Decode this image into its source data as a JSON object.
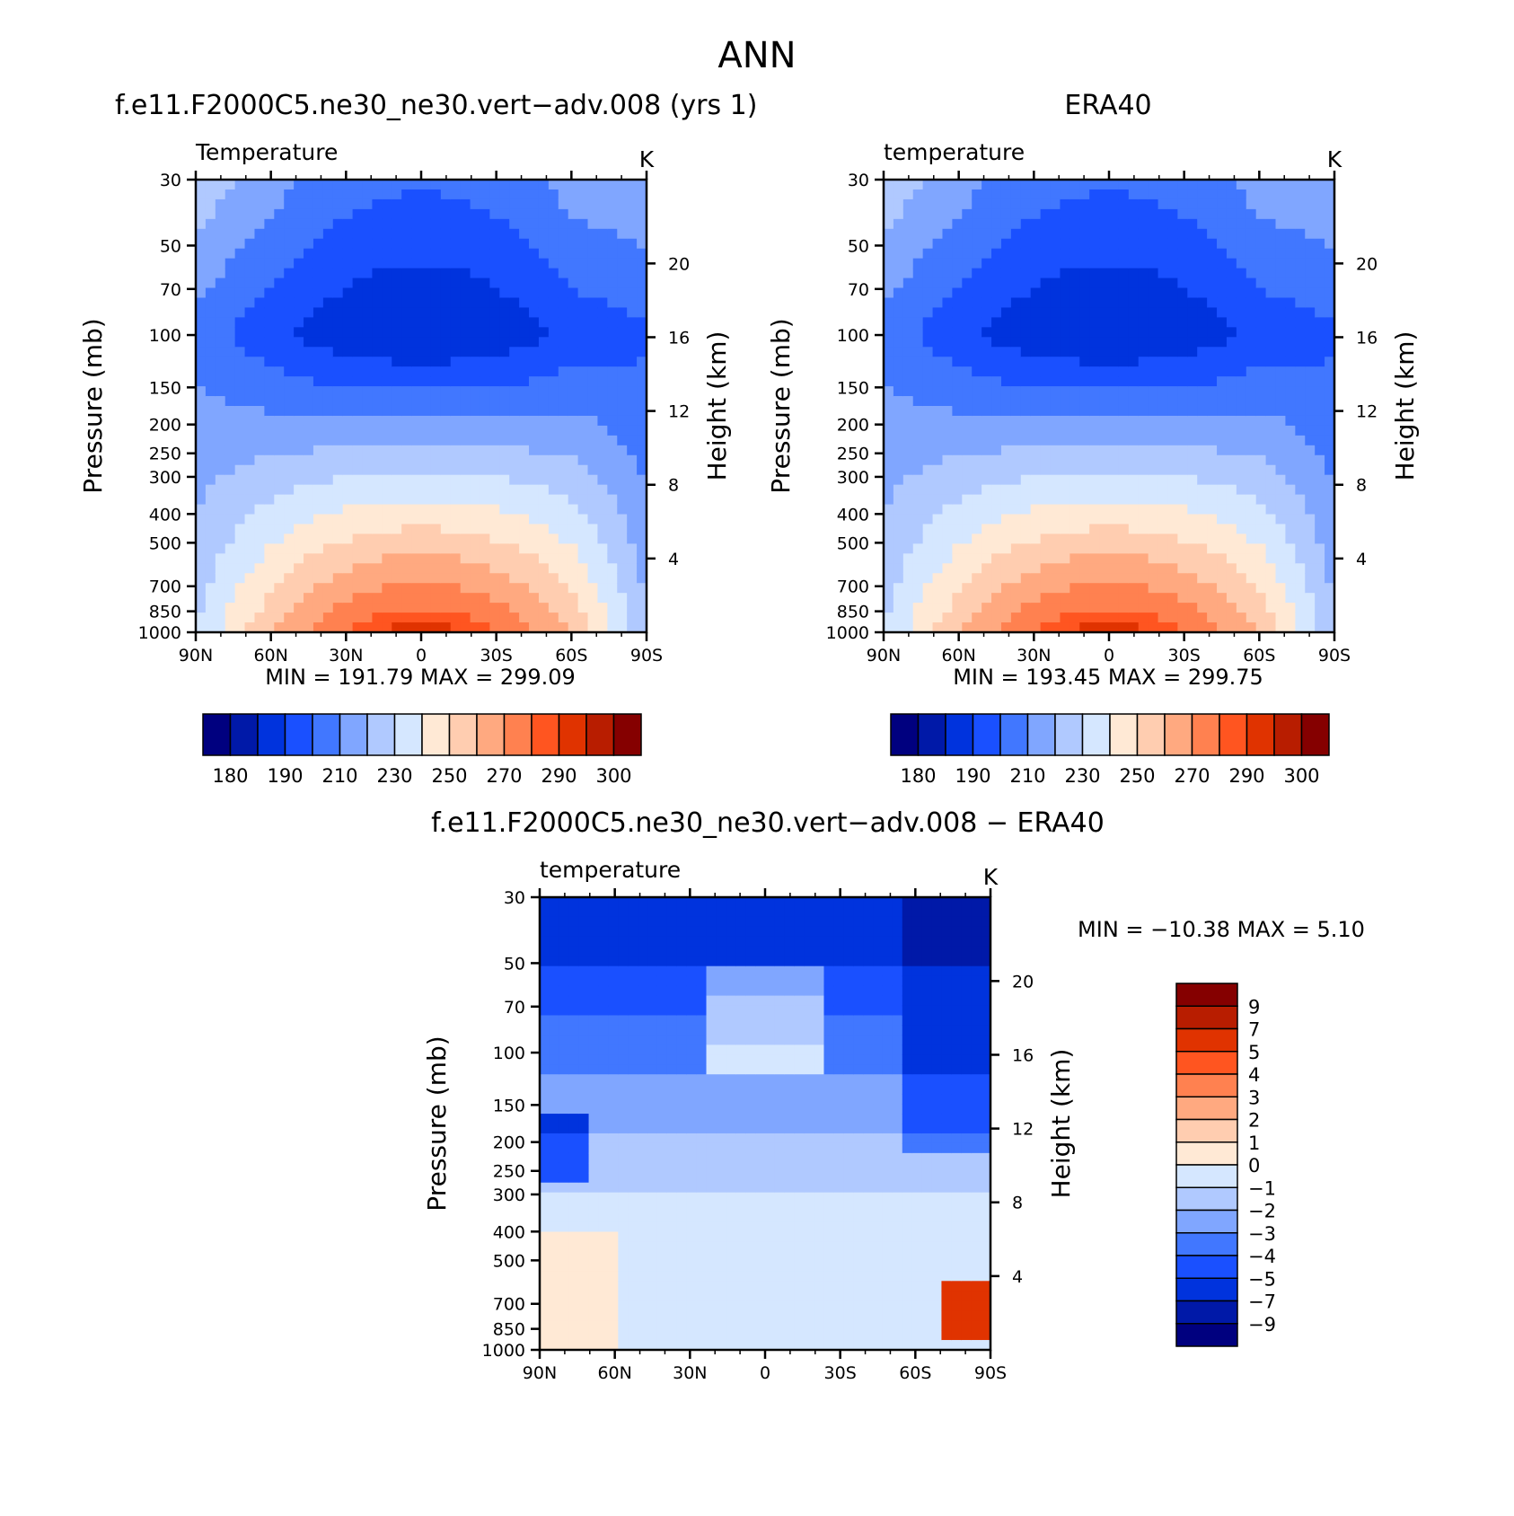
{
  "page_title": "ANN",
  "chart_data": [
    {
      "type": "heatmap",
      "title": "f.e11.F2000C5.ne30_ne30.vert-adv.008 (yrs 1)",
      "variable": "Temperature",
      "units": "K",
      "ylabel": "Pressure (mb)",
      "ylabel_right": "Height (km)",
      "x_ticks": [
        "90N",
        "60N",
        "30N",
        "0",
        "30S",
        "60S",
        "90S"
      ],
      "y_ticks": [
        "30",
        "50",
        "70",
        "100",
        "150",
        "200",
        "250",
        "300",
        "400",
        "500",
        "700",
        "850",
        "1000"
      ],
      "y2_ticks": [
        "4",
        "8",
        "12",
        "16",
        "20"
      ],
      "stats": {
        "min_label": "MIN",
        "min": "191.79",
        "max_label": "MAX",
        "max": "299.09"
      },
      "colorbar_labels": [
        "180",
        "190",
        "210",
        "230",
        "250",
        "270",
        "290",
        "300"
      ],
      "colorbar_orientation": "horizontal",
      "field": {
        "min": 191.79,
        "max": 299.09,
        "tropopause_min_lat": 0,
        "cold_pole": "south"
      }
    },
    {
      "type": "heatmap",
      "title": "ERA40",
      "variable": "temperature",
      "units": "K",
      "ylabel": "Pressure (mb)",
      "ylabel_right": "Height (km)",
      "x_ticks": [
        "90N",
        "60N",
        "30N",
        "0",
        "30S",
        "60S",
        "90S"
      ],
      "y_ticks": [
        "30",
        "50",
        "70",
        "100",
        "150",
        "200",
        "250",
        "300",
        "400",
        "500",
        "700",
        "850",
        "1000"
      ],
      "y2_ticks": [
        "4",
        "8",
        "12",
        "16",
        "20"
      ],
      "stats": {
        "min_label": "MIN",
        "min": "193.45",
        "max_label": "MAX",
        "max": "299.75"
      },
      "colorbar_labels": [
        "180",
        "190",
        "210",
        "230",
        "250",
        "270",
        "290",
        "300"
      ],
      "colorbar_orientation": "horizontal",
      "field": {
        "min": 193.45,
        "max": 299.75,
        "tropopause_min_lat": 0,
        "cold_pole": "south"
      }
    },
    {
      "type": "heatmap",
      "title": "f.e11.F2000C5.ne30_ne30.vert-adv.008 - ERA40",
      "variable": "temperature",
      "units": "K",
      "ylabel": "Pressure (mb)",
      "ylabel_right": "Height (km)",
      "x_ticks": [
        "90N",
        "60N",
        "30N",
        "0",
        "30S",
        "60S",
        "90S"
      ],
      "y_ticks": [
        "30",
        "50",
        "70",
        "100",
        "150",
        "200",
        "250",
        "300",
        "400",
        "500",
        "700",
        "850",
        "1000"
      ],
      "y2_ticks": [
        "4",
        "8",
        "12",
        "16",
        "20"
      ],
      "stats": {
        "min_label": "MIN",
        "min": "-10.38",
        "max_label": "MAX",
        "max": "5.10"
      },
      "colorbar_labels": [
        "9",
        "7",
        "5",
        "4",
        "3",
        "2",
        "1",
        "0",
        "-1",
        "-2",
        "-3",
        "-4",
        "-5",
        "-7",
        "-9"
      ],
      "colorbar_orientation": "vertical",
      "field": {
        "min": -10.38,
        "max": 5.1
      }
    }
  ],
  "colors": {
    "abs_scale": [
      "#00007f",
      "#0019a8",
      "#0033dd",
      "#1a50ff",
      "#4177ff",
      "#80a6ff",
      "#b0c9ff",
      "#d5e7ff",
      "#ffe9d5",
      "#ffcdb0",
      "#ffa980",
      "#ff8150",
      "#ff5520",
      "#e03300",
      "#b81d00",
      "#850000"
    ],
    "diff_scale": [
      "#850000",
      "#b81d00",
      "#e03300",
      "#ff5520",
      "#ff8150",
      "#ffa980",
      "#ffcdb0",
      "#ffe9d5",
      "#d5e7ff",
      "#b0c9ff",
      "#80a6ff",
      "#4177ff",
      "#1a50ff",
      "#0033dd",
      "#0019a8",
      "#00007f"
    ]
  }
}
